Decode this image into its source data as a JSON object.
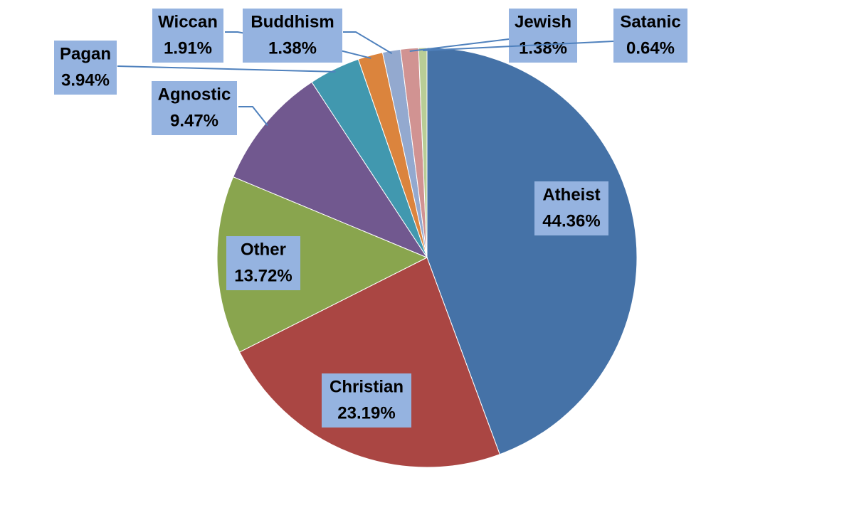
{
  "chart_data": {
    "type": "pie",
    "categories": [
      "Atheist",
      "Christian",
      "Other",
      "Agnostic",
      "Pagan",
      "Wiccan",
      "Buddhism",
      "Jewish",
      "Satanic"
    ],
    "values": [
      44.36,
      23.19,
      13.72,
      9.47,
      3.94,
      1.91,
      1.38,
      1.38,
      0.64
    ],
    "value_labels": [
      "44.36%",
      "23.19%",
      "13.72%",
      "9.47%",
      "3.94%",
      "1.91%",
      "1.38%",
      "1.38%",
      "0.64%"
    ],
    "colors": [
      "#4572a7",
      "#aa4643",
      "#89a54e",
      "#71588f",
      "#4198af",
      "#db843d",
      "#93a9cf",
      "#d19392",
      "#b9cd96"
    ]
  }
}
